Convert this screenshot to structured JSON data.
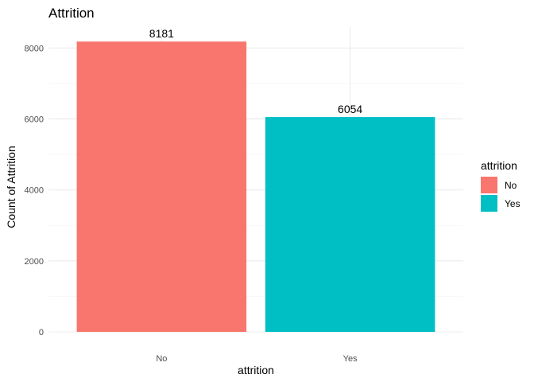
{
  "chart_data": {
    "type": "bar",
    "title": "Attrition",
    "xlabel": "attrition",
    "ylabel": "Count of Attrition",
    "categories": [
      "No",
      "Yes"
    ],
    "values": [
      8181,
      6054
    ],
    "data_labels": [
      "8181",
      "6054"
    ],
    "colors": [
      "#f8766d",
      "#00bfc4"
    ],
    "ylim": [
      0,
      8590
    ],
    "yticks": [
      0,
      2000,
      4000,
      6000,
      8000
    ],
    "ytick_labels": [
      "0",
      "2000",
      "4000",
      "6000",
      "8000"
    ],
    "grid": true,
    "legend": {
      "title": "attrition",
      "position": "right",
      "entries": [
        {
          "label": "No",
          "color": "#f8766d"
        },
        {
          "label": "Yes",
          "color": "#00bfc4"
        }
      ]
    }
  }
}
